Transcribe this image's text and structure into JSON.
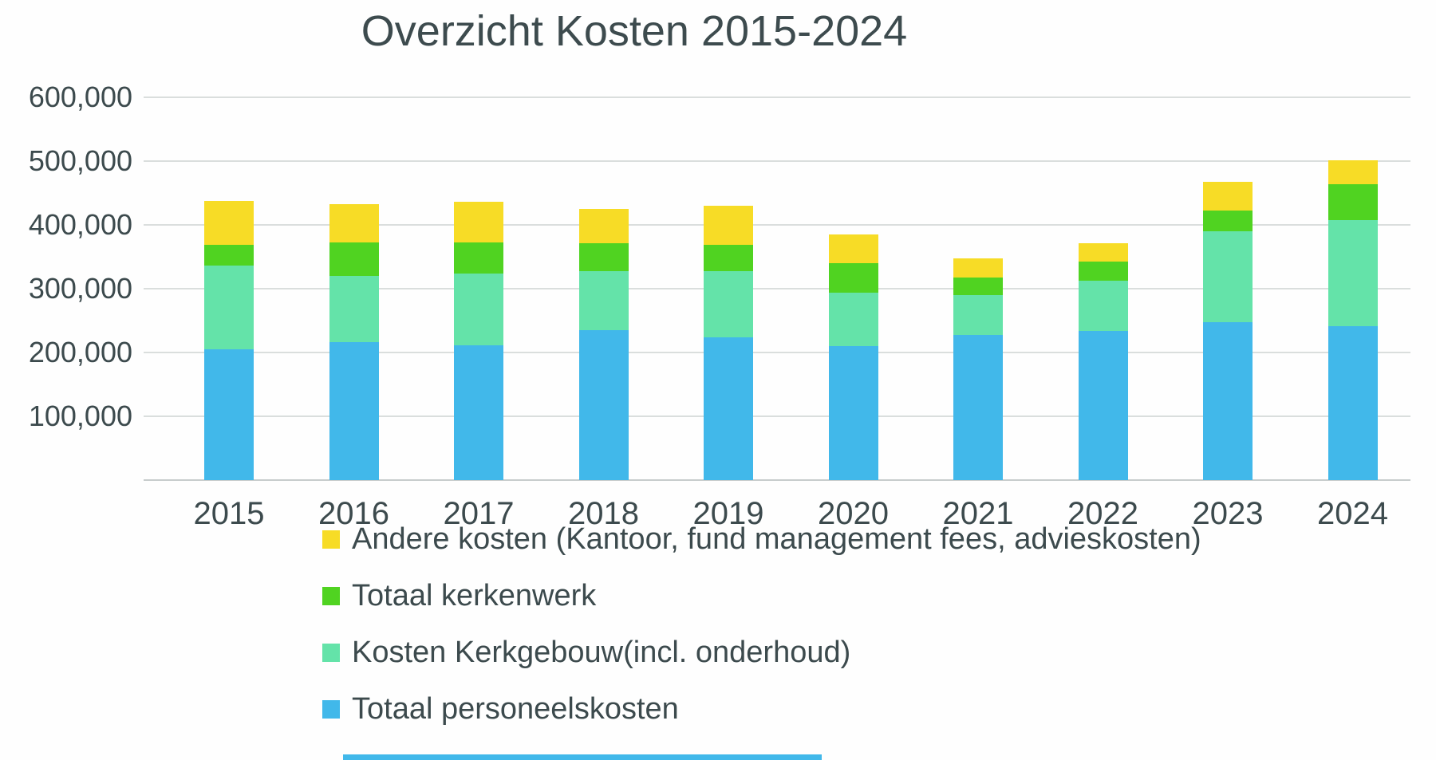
{
  "chart_data": {
    "type": "bar",
    "stacked": true,
    "title": "Overzicht Kosten 2015-2024",
    "categories": [
      "2015",
      "2016",
      "2017",
      "2018",
      "2019",
      "2020",
      "2021",
      "2022",
      "2023",
      "2024"
    ],
    "series": [
      {
        "name": "Totaal personeelskosten",
        "color": "#41b8ea",
        "values": [
          205000,
          216000,
          211000,
          235000,
          224000,
          210000,
          228000,
          234000,
          248000,
          241000
        ]
      },
      {
        "name": "Kosten Kerkgebouw(incl. onderhoud)",
        "color": "#64e3a9",
        "values": [
          131000,
          104000,
          113000,
          93000,
          104000,
          84000,
          62000,
          79000,
          142000,
          166000
        ]
      },
      {
        "name": "Totaal kerkenwerk",
        "color": "#50d321",
        "values": [
          33000,
          52000,
          49000,
          43000,
          41000,
          46000,
          27000,
          30000,
          32000,
          57000
        ]
      },
      {
        "name": "Andere kosten (Kantoor, fund management fees, advieskosten)",
        "color": "#f7dc26",
        "values": [
          68000,
          61000,
          63000,
          54000,
          61000,
          45000,
          31000,
          28000,
          46000,
          37000
        ]
      }
    ],
    "ylim": [
      0,
      600000
    ],
    "ytick_interval": 100000,
    "ytick_labels_top_down": [
      "600,000",
      "500,000",
      "400,000",
      "300,000",
      "200,000",
      "100,000"
    ],
    "grid": true,
    "legend_position": "bottom-left"
  },
  "legend": {
    "items": [
      {
        "label": "Andere kosten (Kantoor, fund management fees, advieskosten)",
        "color": "#f7dc26"
      },
      {
        "label": "Totaal kerkenwerk",
        "color": "#50d321"
      },
      {
        "label": "Kosten Kerkgebouw(incl. onderhoud)",
        "color": "#64e3a9"
      },
      {
        "label": "Totaal personeelskosten",
        "color": "#41b8ea"
      }
    ]
  },
  "decor": {
    "gridline_color": "#dadedd",
    "axis_color": "#c7cccc",
    "text_color": "#3c4a4d",
    "bottom_bar_color": "#41b8ea"
  }
}
